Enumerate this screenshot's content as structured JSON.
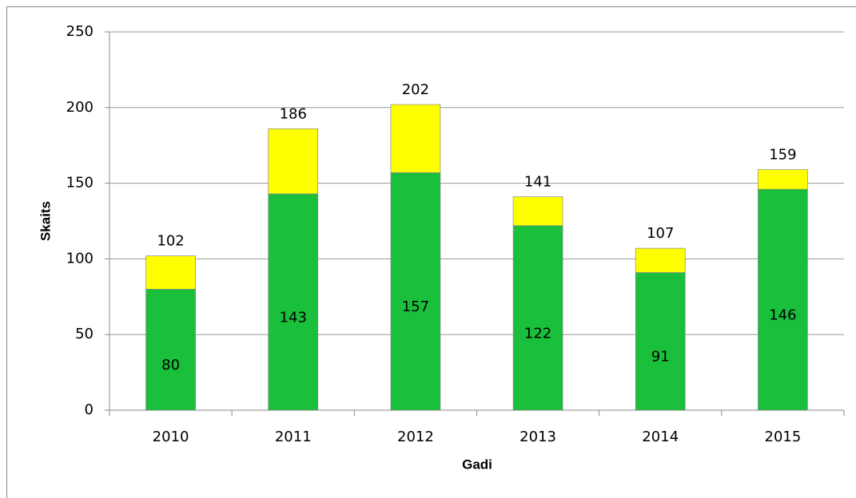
{
  "chart_data": {
    "type": "stacked_bar",
    "x_label": "Gadi",
    "y_label": "Skaits",
    "categories": [
      "2010",
      "2011",
      "2012",
      "2013",
      "2014",
      "2015"
    ],
    "series": [
      {
        "color": "#1abf3c",
        "values": [
          80,
          143,
          157,
          122,
          91,
          146
        ]
      },
      {
        "color": "#ffff00",
        "values": [
          22,
          43,
          45,
          19,
          16,
          13
        ]
      }
    ],
    "totals": [
      102,
      186,
      202,
      141,
      107,
      159
    ],
    "ylim": [
      0,
      250
    ],
    "yticks": [
      0,
      50,
      100,
      150,
      200,
      250
    ],
    "grid": true
  }
}
